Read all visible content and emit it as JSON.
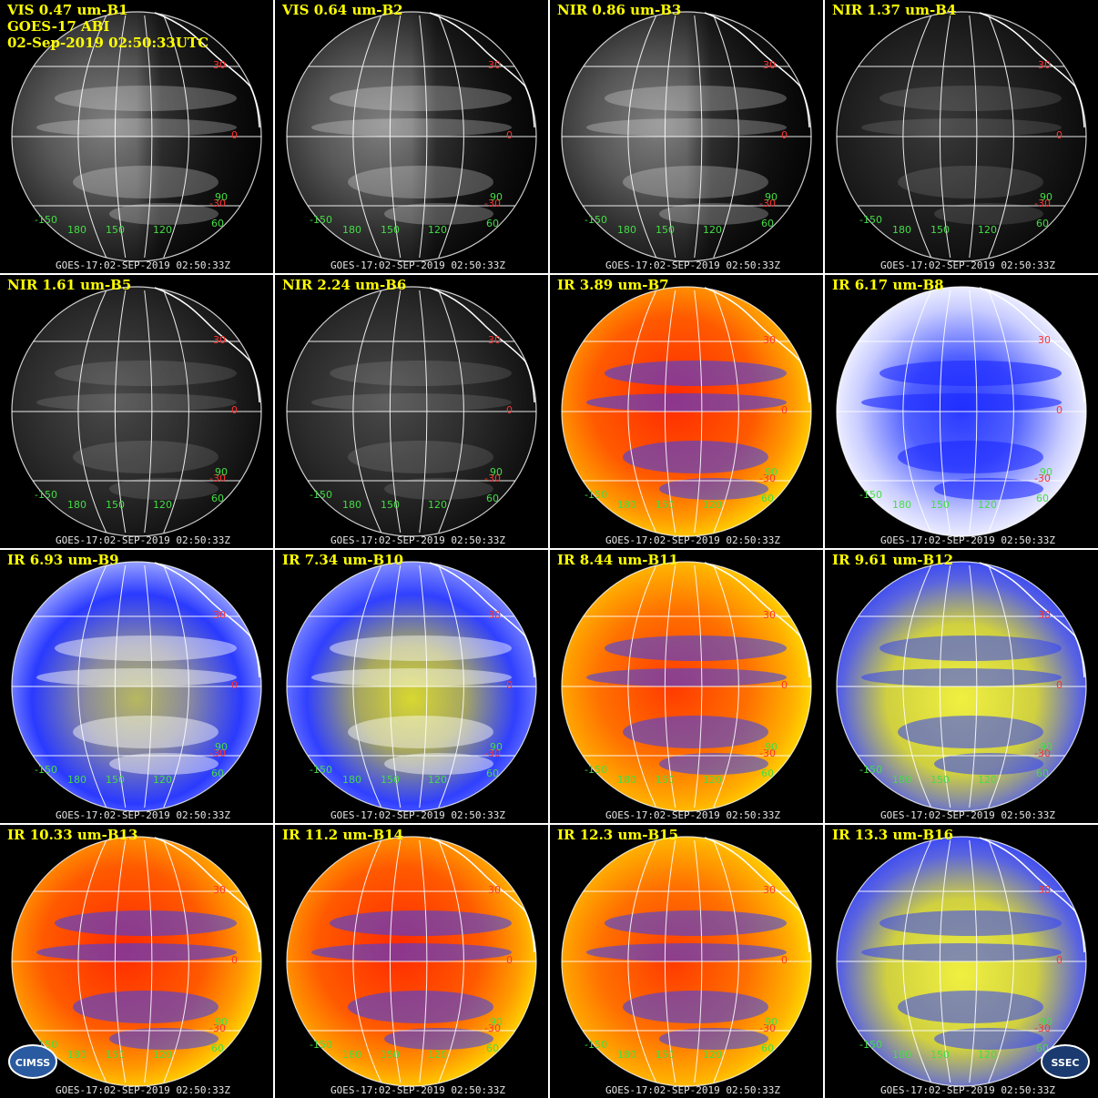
{
  "header": {
    "satellite": "GOES-17 ABI",
    "datetime": "02-Sep-2019 02:50:33UTC"
  },
  "footer_text": "GOES-17:02-SEP-2019 02:50:33Z",
  "latitude_labels": [
    "30",
    "0",
    "-30"
  ],
  "longitude_labels": [
    "-150",
    "180",
    "150",
    "120",
    "60",
    "90"
  ],
  "logos": {
    "left": "CIMSS",
    "right": "SSEC"
  },
  "colors": {
    "title": "#ffff00",
    "lat_label": "#ff3030",
    "lon_label": "#44dd44",
    "footer": "#e6e6e6",
    "gridline": "#ffffff"
  },
  "panels": [
    {
      "title": "VIS 0.47 um-B1",
      "style": "vis-bright"
    },
    {
      "title": "VIS 0.64 um-B2",
      "style": "vis-bright"
    },
    {
      "title": "NIR 0.86 um-B3",
      "style": "vis-bright"
    },
    {
      "title": "NIR 1.37 um-B4",
      "style": "vis-dark"
    },
    {
      "title": "NIR 1.61 um-B5",
      "style": "vis-dim"
    },
    {
      "title": "NIR 2.24 um-B6",
      "style": "vis-dim"
    },
    {
      "title": "IR 3.89 um-B7",
      "style": "ir-red"
    },
    {
      "title": "IR 6.17 um-B8",
      "style": "wv-white"
    },
    {
      "title": "IR 6.93 um-B9",
      "style": "wv-blue"
    },
    {
      "title": "IR 7.34 um-B10",
      "style": "wv-olive"
    },
    {
      "title": "IR 8.44 um-B11",
      "style": "ir-orange"
    },
    {
      "title": "IR 9.61 um-B12",
      "style": "ir-yellowblue"
    },
    {
      "title": "IR 10.33 um-B13",
      "style": "ir-red"
    },
    {
      "title": "IR 11.2 um-B14",
      "style": "ir-red"
    },
    {
      "title": "IR 12.3 um-B15",
      "style": "ir-orange"
    },
    {
      "title": "IR 13.3 um-B16",
      "style": "ir-yellowblue"
    }
  ]
}
